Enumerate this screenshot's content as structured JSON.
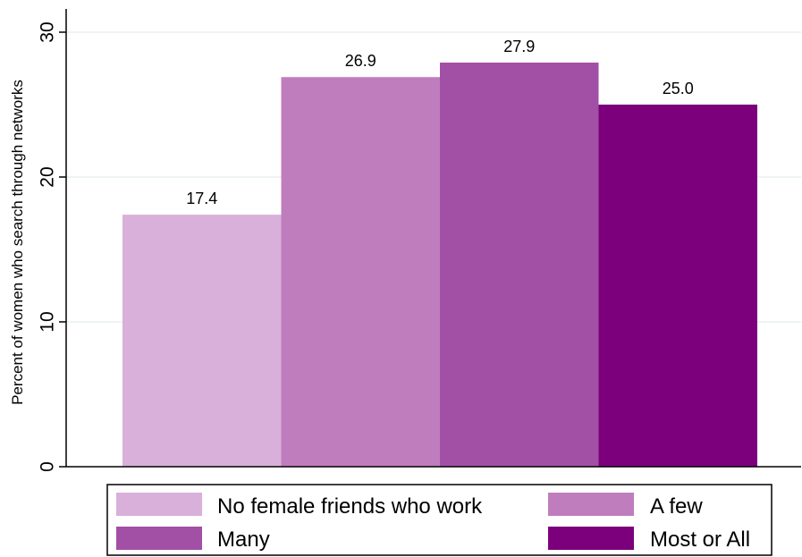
{
  "chart_data": {
    "type": "bar",
    "title": "",
    "xlabel": "",
    "ylabel": "Percent of women who search through networks",
    "categories": [
      "No female friends who work",
      "A few",
      "Many",
      "Most or All"
    ],
    "values": [
      17.4,
      26.9,
      27.9,
      25.0
    ],
    "value_labels": [
      "17.4",
      "26.9",
      "27.9",
      "25.0"
    ],
    "colors": [
      "#d8b0da",
      "#bf7dbd",
      "#a24fa6",
      "#7c007c"
    ],
    "ylim": [
      0,
      30
    ],
    "yticks": [
      0,
      10,
      20,
      30
    ],
    "ytick_labels": [
      "0",
      "10",
      "20",
      "30"
    ],
    "grid": true,
    "legend": {
      "placement": "bottom",
      "entries": [
        "No female friends who work",
        "A few",
        "Many",
        "Most or All"
      ]
    }
  }
}
